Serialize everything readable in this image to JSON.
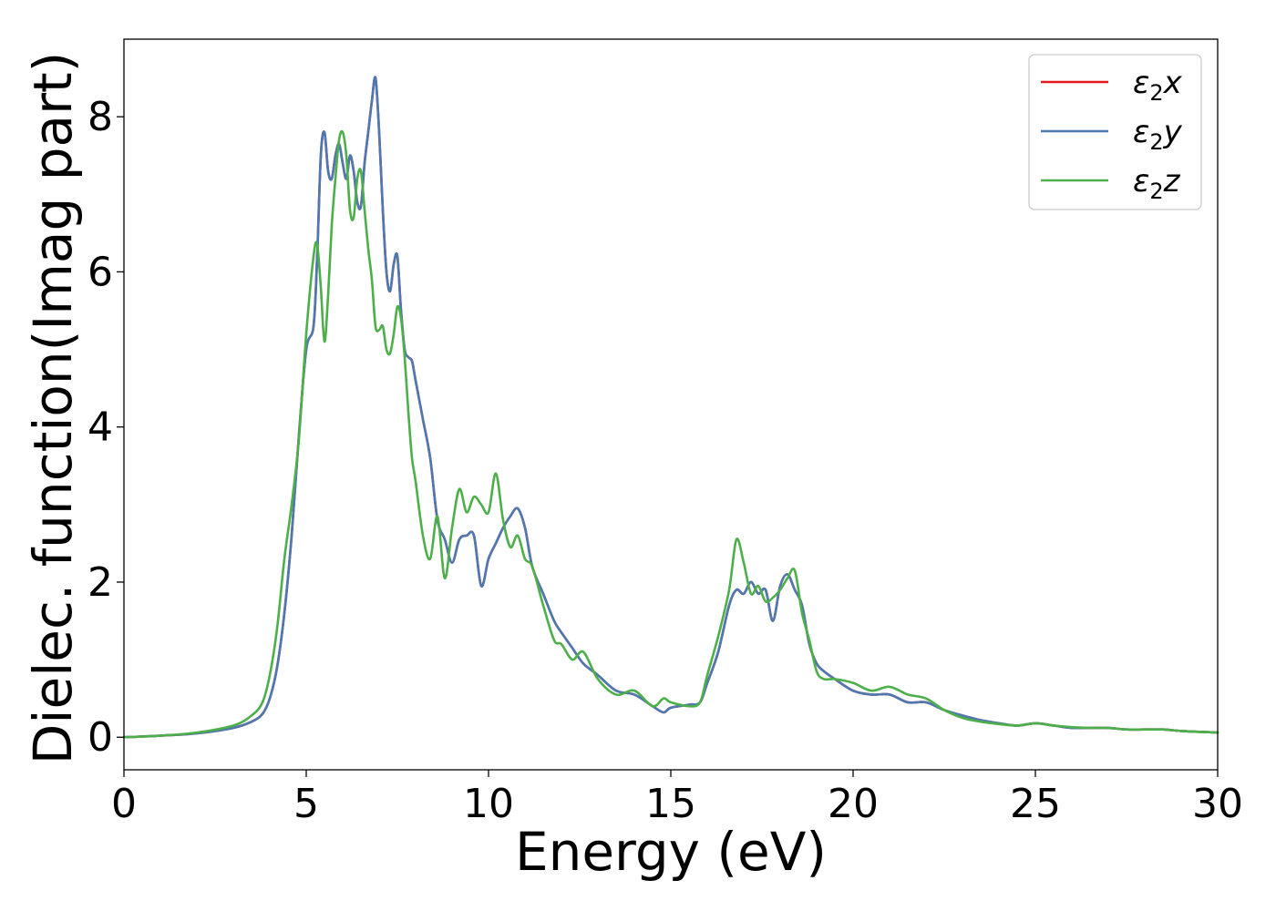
{
  "chart_data": {
    "type": "line",
    "title": "",
    "xlabel": "Energy (eV)",
    "ylabel": "Dielec. function(Imag part)",
    "xlim": [
      0,
      30
    ],
    "ylim": [
      -0.42,
      9.0
    ],
    "xticks": [
      0,
      5,
      10,
      15,
      20,
      25,
      30
    ],
    "yticks": [
      0,
      2,
      4,
      6,
      8
    ],
    "grid": false,
    "legend_position": "top-right",
    "series": [
      {
        "name": "ε2x",
        "legend_base": "ε",
        "legend_sub": "2",
        "legend_suffix": "x",
        "color": "#e41a1c",
        "x": [
          0,
          1,
          2,
          3,
          3.5,
          3.8,
          4.0,
          4.2,
          4.4,
          4.6,
          4.8,
          5.0,
          5.2,
          5.3,
          5.4,
          5.5,
          5.6,
          5.7,
          5.8,
          5.9,
          6.0,
          6.1,
          6.2,
          6.3,
          6.4,
          6.5,
          6.6,
          6.7,
          6.8,
          6.9,
          7.0,
          7.1,
          7.2,
          7.3,
          7.4,
          7.5,
          7.6,
          7.7,
          7.8,
          7.9,
          8.0,
          8.2,
          8.4,
          8.6,
          8.8,
          9.0,
          9.2,
          9.4,
          9.6,
          9.8,
          10.0,
          10.2,
          10.4,
          10.6,
          10.8,
          11.0,
          11.2,
          11.5,
          11.8,
          12.0,
          12.3,
          12.6,
          13.0,
          13.5,
          14.0,
          14.5,
          14.8,
          15.0,
          15.5,
          15.8,
          16.0,
          16.3,
          16.6,
          16.8,
          17.0,
          17.2,
          17.4,
          17.6,
          17.8,
          18.0,
          18.2,
          18.4,
          18.6,
          18.8,
          19.0,
          19.2,
          19.5,
          20.0,
          20.5,
          21.0,
          21.5,
          22.0,
          22.5,
          23.0,
          23.5,
          24.0,
          24.5,
          25.0,
          25.5,
          26.0,
          26.5,
          27.0,
          27.5,
          28.0,
          28.5,
          29.0,
          29.5,
          30.0
        ],
        "y": [
          0,
          0.02,
          0.05,
          0.12,
          0.2,
          0.3,
          0.5,
          0.9,
          1.6,
          2.6,
          3.9,
          5.0,
          5.3,
          6.2,
          7.5,
          7.8,
          7.3,
          7.2,
          7.5,
          7.65,
          7.4,
          7.2,
          7.5,
          7.3,
          6.9,
          6.85,
          7.4,
          7.8,
          8.2,
          8.5,
          7.8,
          6.8,
          6.0,
          5.75,
          6.1,
          6.2,
          5.5,
          5.0,
          4.9,
          4.85,
          4.6,
          4.1,
          3.6,
          2.8,
          2.55,
          2.25,
          2.55,
          2.6,
          2.6,
          1.95,
          2.3,
          2.5,
          2.7,
          2.85,
          2.95,
          2.7,
          2.2,
          1.85,
          1.5,
          1.35,
          1.15,
          0.95,
          0.8,
          0.6,
          0.55,
          0.4,
          0.32,
          0.38,
          0.42,
          0.45,
          0.7,
          1.1,
          1.7,
          1.9,
          1.85,
          2.0,
          1.85,
          1.9,
          1.5,
          1.95,
          2.1,
          1.9,
          1.7,
          1.2,
          0.95,
          0.85,
          0.75,
          0.6,
          0.55,
          0.55,
          0.45,
          0.45,
          0.35,
          0.28,
          0.22,
          0.18,
          0.15,
          0.18,
          0.15,
          0.12,
          0.12,
          0.12,
          0.1,
          0.1,
          0.1,
          0.08,
          0.07,
          0.06
        ]
      },
      {
        "name": "ε2y",
        "legend_base": "ε",
        "legend_sub": "2",
        "legend_suffix": "y",
        "color": "#4c79b1",
        "x": [
          0,
          1,
          2,
          3,
          3.5,
          3.8,
          4.0,
          4.2,
          4.4,
          4.6,
          4.8,
          5.0,
          5.2,
          5.3,
          5.4,
          5.5,
          5.6,
          5.7,
          5.8,
          5.9,
          6.0,
          6.1,
          6.2,
          6.3,
          6.4,
          6.5,
          6.6,
          6.7,
          6.8,
          6.9,
          7.0,
          7.1,
          7.2,
          7.3,
          7.4,
          7.5,
          7.6,
          7.7,
          7.8,
          7.9,
          8.0,
          8.2,
          8.4,
          8.6,
          8.8,
          9.0,
          9.2,
          9.4,
          9.6,
          9.8,
          10.0,
          10.2,
          10.4,
          10.6,
          10.8,
          11.0,
          11.2,
          11.5,
          11.8,
          12.0,
          12.3,
          12.6,
          13.0,
          13.5,
          14.0,
          14.5,
          14.8,
          15.0,
          15.5,
          15.8,
          16.0,
          16.3,
          16.6,
          16.8,
          17.0,
          17.2,
          17.4,
          17.6,
          17.8,
          18.0,
          18.2,
          18.4,
          18.6,
          18.8,
          19.0,
          19.2,
          19.5,
          20.0,
          20.5,
          21.0,
          21.5,
          22.0,
          22.5,
          23.0,
          23.5,
          24.0,
          24.5,
          25.0,
          25.5,
          26.0,
          26.5,
          27.0,
          27.5,
          28.0,
          28.5,
          29.0,
          29.5,
          30.0
        ],
        "y": [
          0,
          0.02,
          0.05,
          0.12,
          0.2,
          0.3,
          0.5,
          0.9,
          1.6,
          2.6,
          3.9,
          5.0,
          5.3,
          6.2,
          7.5,
          7.8,
          7.3,
          7.2,
          7.5,
          7.65,
          7.4,
          7.2,
          7.5,
          7.3,
          6.9,
          6.85,
          7.4,
          7.8,
          8.2,
          8.5,
          7.8,
          6.8,
          6.0,
          5.75,
          6.1,
          6.2,
          5.5,
          5.0,
          4.9,
          4.85,
          4.6,
          4.1,
          3.6,
          2.8,
          2.55,
          2.25,
          2.55,
          2.6,
          2.6,
          1.95,
          2.3,
          2.5,
          2.7,
          2.85,
          2.95,
          2.7,
          2.2,
          1.85,
          1.5,
          1.35,
          1.15,
          0.95,
          0.8,
          0.6,
          0.55,
          0.4,
          0.32,
          0.38,
          0.42,
          0.45,
          0.7,
          1.1,
          1.7,
          1.9,
          1.85,
          2.0,
          1.85,
          1.9,
          1.5,
          1.95,
          2.1,
          1.9,
          1.7,
          1.2,
          0.95,
          0.85,
          0.75,
          0.6,
          0.55,
          0.55,
          0.45,
          0.45,
          0.35,
          0.28,
          0.22,
          0.18,
          0.15,
          0.18,
          0.15,
          0.12,
          0.12,
          0.12,
          0.1,
          0.1,
          0.1,
          0.08,
          0.07,
          0.06
        ]
      },
      {
        "name": "ε2z",
        "legend_base": "ε",
        "legend_sub": "2",
        "legend_suffix": "z",
        "color": "#4daf4a",
        "x": [
          0,
          1,
          2,
          3,
          3.5,
          3.8,
          4.0,
          4.2,
          4.4,
          4.6,
          4.8,
          5.0,
          5.2,
          5.3,
          5.4,
          5.5,
          5.6,
          5.7,
          5.8,
          5.9,
          6.0,
          6.1,
          6.2,
          6.3,
          6.4,
          6.5,
          6.6,
          6.7,
          6.8,
          6.9,
          7.0,
          7.1,
          7.2,
          7.3,
          7.4,
          7.5,
          7.6,
          7.7,
          7.8,
          7.9,
          8.0,
          8.2,
          8.4,
          8.6,
          8.8,
          9.0,
          9.2,
          9.4,
          9.6,
          9.8,
          10.0,
          10.2,
          10.4,
          10.6,
          10.8,
          11.0,
          11.2,
          11.5,
          11.8,
          12.0,
          12.3,
          12.6,
          13.0,
          13.5,
          14.0,
          14.5,
          14.8,
          15.0,
          15.5,
          15.8,
          16.0,
          16.3,
          16.6,
          16.8,
          17.0,
          17.2,
          17.4,
          17.6,
          17.8,
          18.0,
          18.2,
          18.4,
          18.6,
          18.8,
          19.0,
          19.2,
          19.5,
          20.0,
          20.5,
          21.0,
          21.5,
          22.0,
          22.5,
          23.0,
          23.5,
          24.0,
          24.5,
          25.0,
          25.5,
          26.0,
          26.5,
          27.0,
          27.5,
          28.0,
          28.5,
          29.0,
          29.5,
          30.0
        ],
        "y": [
          0,
          0.02,
          0.06,
          0.15,
          0.28,
          0.45,
          0.8,
          1.4,
          2.3,
          3.0,
          3.85,
          5.2,
          6.2,
          6.35,
          5.8,
          5.1,
          5.7,
          6.6,
          7.2,
          7.7,
          7.8,
          7.5,
          6.8,
          6.7,
          7.2,
          7.3,
          6.8,
          6.3,
          5.9,
          5.3,
          5.25,
          5.3,
          5.0,
          4.95,
          5.2,
          5.55,
          5.4,
          4.9,
          4.2,
          3.6,
          3.3,
          2.6,
          2.3,
          2.85,
          2.05,
          2.7,
          3.2,
          2.9,
          3.1,
          3.0,
          2.9,
          3.4,
          2.8,
          2.45,
          2.6,
          2.3,
          2.2,
          1.7,
          1.25,
          1.2,
          1.0,
          1.1,
          0.75,
          0.55,
          0.6,
          0.4,
          0.5,
          0.45,
          0.4,
          0.45,
          0.8,
          1.3,
          1.9,
          2.55,
          2.25,
          1.85,
          1.95,
          1.75,
          1.8,
          1.9,
          2.05,
          2.15,
          1.6,
          1.25,
          0.85,
          0.75,
          0.75,
          0.7,
          0.6,
          0.65,
          0.55,
          0.5,
          0.35,
          0.25,
          0.2,
          0.17,
          0.15,
          0.18,
          0.15,
          0.13,
          0.12,
          0.12,
          0.1,
          0.1,
          0.1,
          0.08,
          0.07,
          0.06
        ]
      }
    ]
  }
}
